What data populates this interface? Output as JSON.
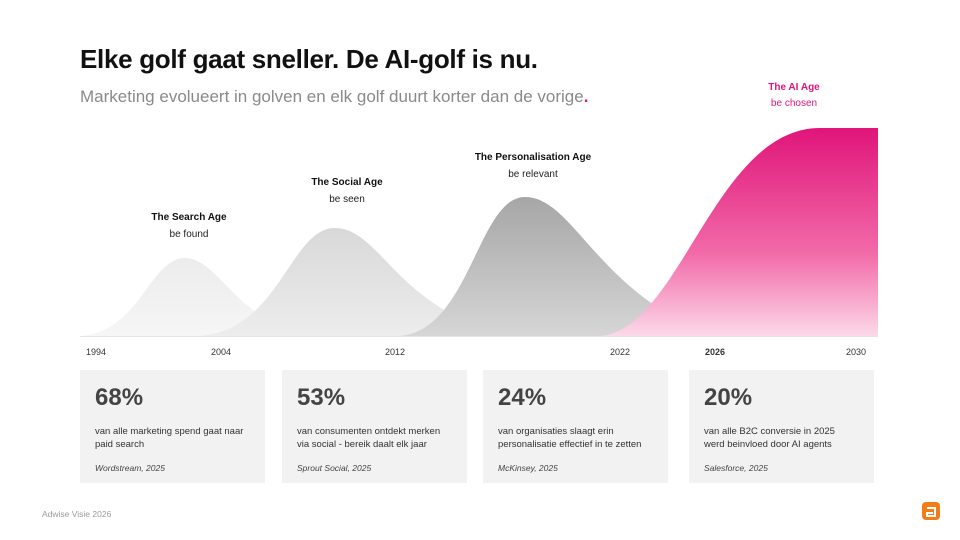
{
  "header": {
    "title": "Elke golf gaat sneller. De AI-golf is nu.",
    "subtitle": "Marketing evolueert in golven en elk golf duurt korter dan de vorige",
    "subtitle_dot": "."
  },
  "waves": [
    {
      "name": "The Search Age",
      "tagline": "be found"
    },
    {
      "name": "The Social Age",
      "tagline": "be seen"
    },
    {
      "name": "The Personalisation Age",
      "tagline": "be relevant"
    },
    {
      "name": "The AI Age",
      "tagline": "be chosen"
    }
  ],
  "timeline": [
    "1994",
    "2004",
    "2012",
    "2022",
    "2026",
    "2030"
  ],
  "stats": [
    {
      "value": "68%",
      "text": "van alle marketing spend gaat naar paid search",
      "source": "Wordstream, 2025"
    },
    {
      "value": "53%",
      "text": "van consumenten ontdekt merken via social - bereik daalt elk jaar",
      "source": "Sprout Social, 2025"
    },
    {
      "value": "24%",
      "text": "van organisaties slaagt erin personalisatie effectief in te zetten",
      "source": "McKinsey, 2025"
    },
    {
      "value": "20%",
      "text": "van alle B2C conversie in 2025 werd beinvloed door AI agents",
      "source": "Salesforce, 2025"
    }
  ],
  "footer": "Adwise Visie 2026"
}
